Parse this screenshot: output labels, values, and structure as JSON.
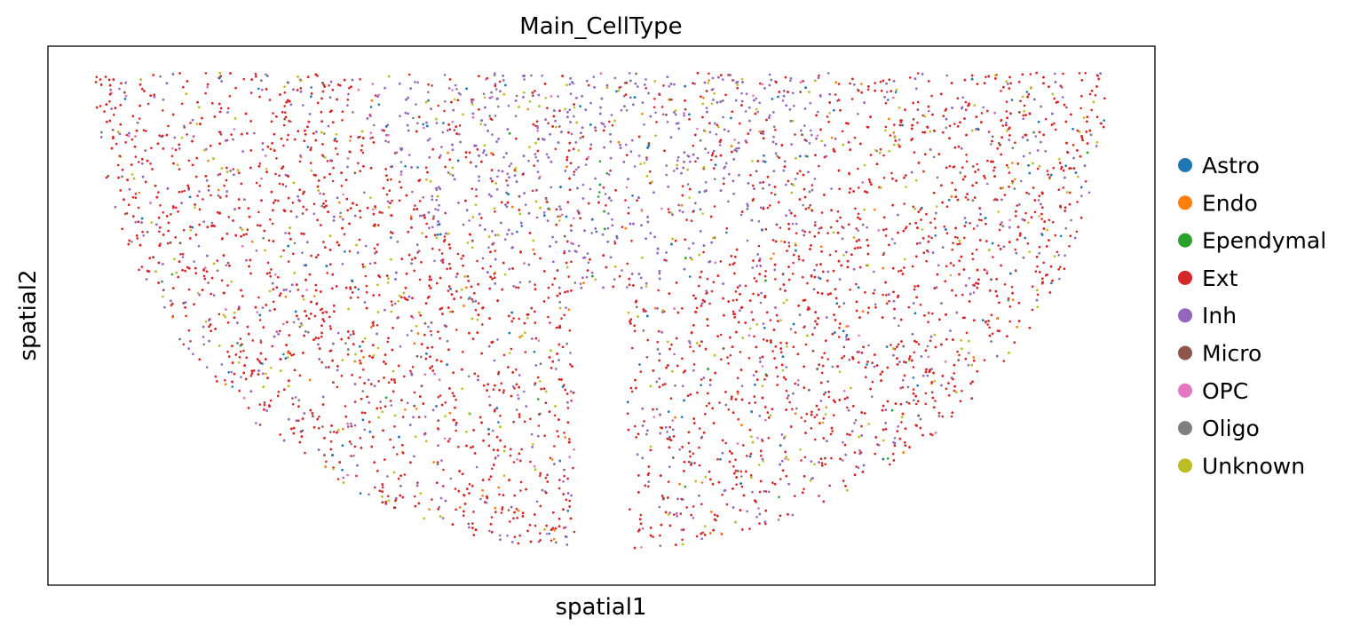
{
  "chart_data": {
    "type": "scatter",
    "title": "Main_CellType",
    "xlabel": "spatial1",
    "ylabel": "spatial2",
    "grid": false,
    "ticks": "none",
    "legend_position": "right",
    "xlim": [
      0,
      1
    ],
    "ylim": [
      0,
      1
    ],
    "categories": [
      {
        "name": "Astro",
        "color": "#1f77b4",
        "weight": 3
      },
      {
        "name": "Endo",
        "color": "#ff7f0e",
        "weight": 2
      },
      {
        "name": "Ependymal",
        "color": "#2ca02c",
        "weight": 0.4
      },
      {
        "name": "Ext",
        "color": "#d62728",
        "weight": 62
      },
      {
        "name": "Inh",
        "color": "#9467bd",
        "weight": 14
      },
      {
        "name": "Micro",
        "color": "#8c564b",
        "weight": 2
      },
      {
        "name": "OPC",
        "color": "#e377c2",
        "weight": 2
      },
      {
        "name": "Oligo",
        "color": "#7f7f7f",
        "weight": 3
      },
      {
        "name": "Unknown",
        "color": "#bcbd22",
        "weight": 7
      }
    ]
  }
}
